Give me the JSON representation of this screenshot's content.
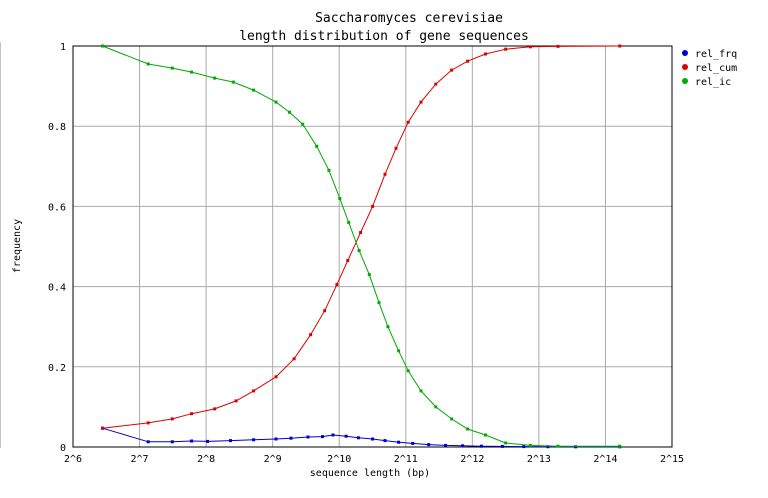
{
  "chart_data": {
    "type": "line",
    "title": "Saccharomyces cerevisiae",
    "subtitle": "length distribution of gene sequences",
    "xlabel": "sequence length (bp)",
    "ylabel": "frequency",
    "x_scale": "log2",
    "xlim": [
      64,
      32768
    ],
    "ylim": [
      0,
      1
    ],
    "x_ticks": [
      {
        "value": 64,
        "label": "2^6"
      },
      {
        "value": 128,
        "label": "2^7"
      },
      {
        "value": 256,
        "label": "2^8"
      },
      {
        "value": 512,
        "label": "2^9"
      },
      {
        "value": 1024,
        "label": "2^10"
      },
      {
        "value": 2048,
        "label": "2^11"
      },
      {
        "value": 4096,
        "label": "2^12"
      },
      {
        "value": 8192,
        "label": "2^13"
      },
      {
        "value": 16384,
        "label": "2^14"
      },
      {
        "value": 32768,
        "label": "2^15"
      }
    ],
    "y_ticks": [
      {
        "value": 0,
        "label": "0"
      },
      {
        "value": 0.2,
        "label": "0.2"
      },
      {
        "value": 0.4,
        "label": "0.4"
      },
      {
        "value": 0.6,
        "label": "0.6"
      },
      {
        "value": 0.8,
        "label": "0.8"
      },
      {
        "value": 1,
        "label": "1"
      }
    ],
    "grid": true,
    "legend_position": "right-top",
    "series": [
      {
        "name": "rel_frq",
        "color": "#0000cc",
        "points": [
          [
            87,
            0.047
          ],
          [
            140,
            0.013
          ],
          [
            180,
            0.013
          ],
          [
            220,
            0.015
          ],
          [
            260,
            0.014
          ],
          [
            330,
            0.016
          ],
          [
            420,
            0.018
          ],
          [
            530,
            0.02
          ],
          [
            620,
            0.022
          ],
          [
            740,
            0.025
          ],
          [
            860,
            0.026
          ],
          [
            960,
            0.03
          ],
          [
            1100,
            0.027
          ],
          [
            1250,
            0.023
          ],
          [
            1450,
            0.02
          ],
          [
            1650,
            0.016
          ],
          [
            1900,
            0.012
          ],
          [
            2200,
            0.009
          ],
          [
            2600,
            0.006
          ],
          [
            3100,
            0.004
          ],
          [
            3700,
            0.003
          ],
          [
            4500,
            0.002
          ],
          [
            5600,
            0.0015
          ],
          [
            7000,
            0.001
          ],
          [
            9000,
            0.0008
          ],
          [
            12000,
            0.0005
          ],
          [
            19000,
            0.0005
          ]
        ]
      },
      {
        "name": "rel_cum",
        "color": "#dd0000",
        "points": [
          [
            87,
            0.047
          ],
          [
            140,
            0.06
          ],
          [
            180,
            0.07
          ],
          [
            220,
            0.083
          ],
          [
            280,
            0.095
          ],
          [
            350,
            0.115
          ],
          [
            420,
            0.14
          ],
          [
            530,
            0.175
          ],
          [
            640,
            0.22
          ],
          [
            760,
            0.28
          ],
          [
            880,
            0.34
          ],
          [
            1000,
            0.405
          ],
          [
            1120,
            0.465
          ],
          [
            1280,
            0.535
          ],
          [
            1450,
            0.6
          ],
          [
            1650,
            0.68
          ],
          [
            1850,
            0.745
          ],
          [
            2100,
            0.81
          ],
          [
            2400,
            0.86
          ],
          [
            2800,
            0.905
          ],
          [
            3300,
            0.94
          ],
          [
            3900,
            0.962
          ],
          [
            4700,
            0.98
          ],
          [
            5800,
            0.992
          ],
          [
            7500,
            0.998
          ],
          [
            10000,
            0.999
          ],
          [
            19000,
            1.0
          ]
        ]
      },
      {
        "name": "rel_ic",
        "color": "#00aa00",
        "points": [
          [
            87,
            1.0
          ],
          [
            140,
            0.955
          ],
          [
            180,
            0.945
          ],
          [
            220,
            0.935
          ],
          [
            280,
            0.92
          ],
          [
            340,
            0.91
          ],
          [
            420,
            0.89
          ],
          [
            530,
            0.86
          ],
          [
            610,
            0.835
          ],
          [
            700,
            0.805
          ],
          [
            810,
            0.75
          ],
          [
            920,
            0.69
          ],
          [
            1030,
            0.62
          ],
          [
            1130,
            0.56
          ],
          [
            1260,
            0.49
          ],
          [
            1400,
            0.43
          ],
          [
            1550,
            0.36
          ],
          [
            1700,
            0.3
          ],
          [
            1900,
            0.24
          ],
          [
            2100,
            0.19
          ],
          [
            2400,
            0.14
          ],
          [
            2800,
            0.1
          ],
          [
            3300,
            0.07
          ],
          [
            3900,
            0.045
          ],
          [
            4700,
            0.03
          ],
          [
            5800,
            0.01
          ],
          [
            7500,
            0.004
          ],
          [
            10000,
            0.002
          ],
          [
            19000,
            0.002
          ]
        ]
      }
    ]
  }
}
